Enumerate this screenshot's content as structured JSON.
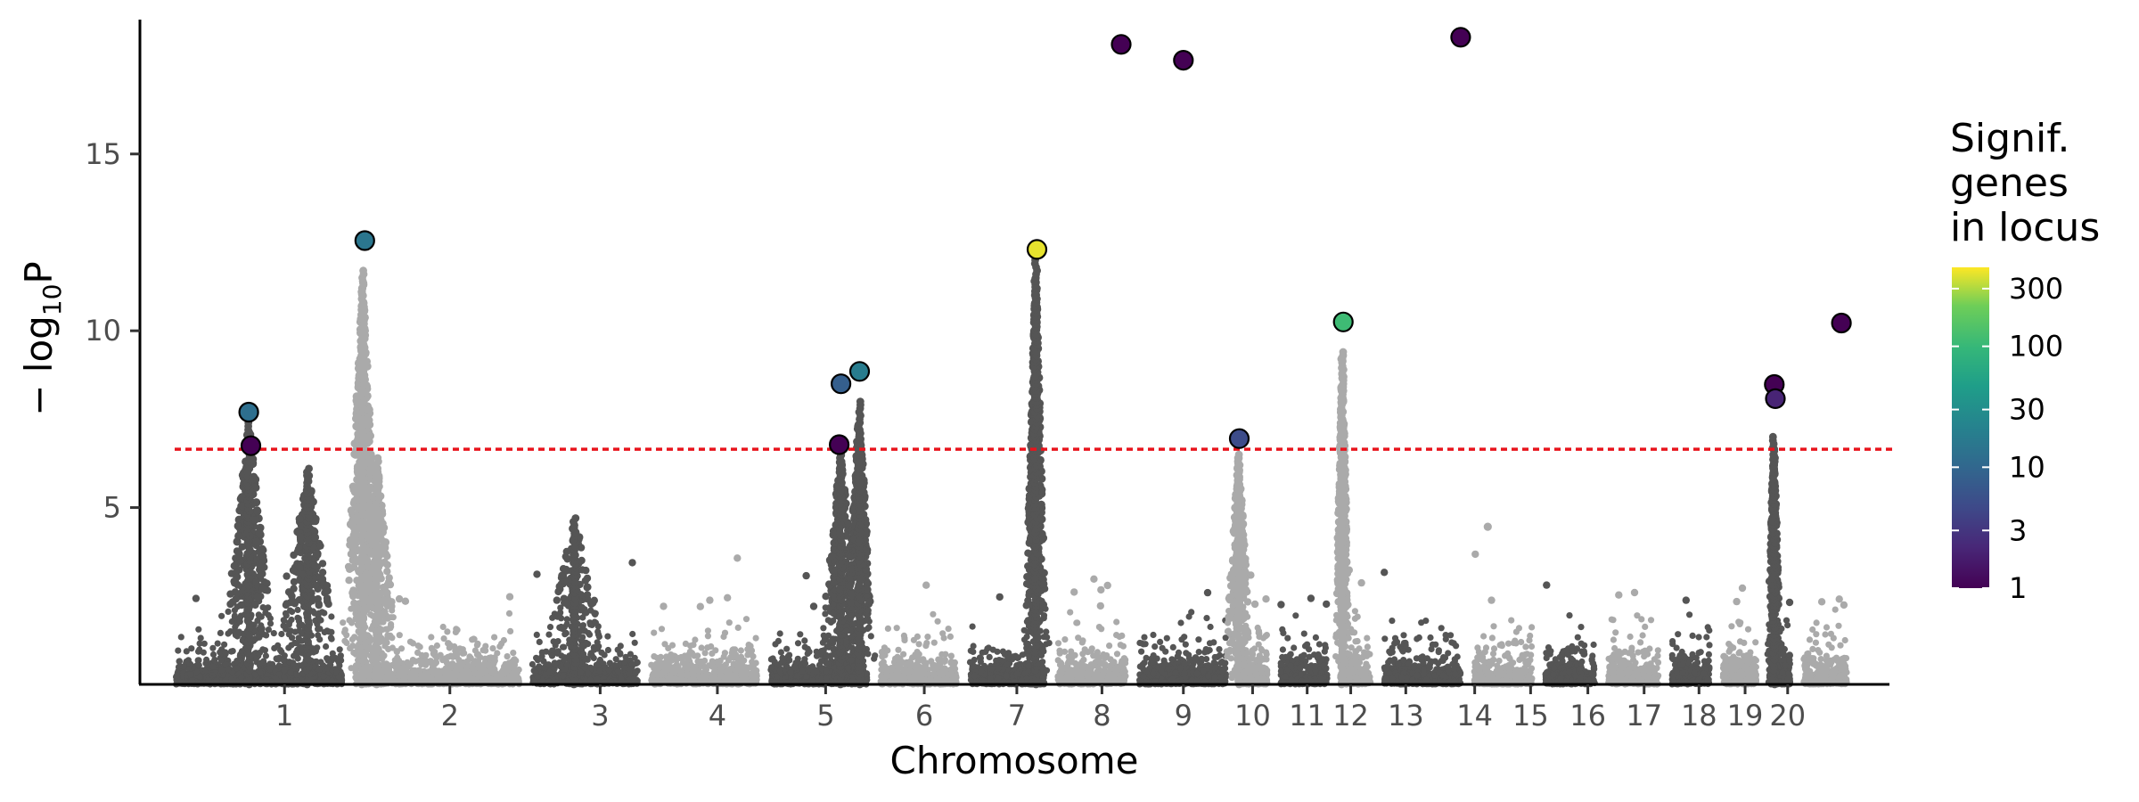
{
  "chart_data": {
    "type": "scatter",
    "subtype": "manhattan",
    "title": "",
    "xlabel": "Chromosome",
    "ylabel_prefix": "− log",
    "ylabel_sub": "10",
    "ylabel_suffix": "P",
    "ylim": [
      0,
      18.8
    ],
    "y_ticks": [
      5,
      10,
      15
    ],
    "significance_threshold": 6.65,
    "threshold_color": "#e8141c",
    "colors": {
      "dark": "#555555",
      "light": "#aaaaaa"
    },
    "chromosomes": [
      {
        "label": "1",
        "start": 0.0,
        "end": 0.1062,
        "base_peak": 5.2,
        "peaks": [
          [
            0.047,
            7.5,
            0.015
          ],
          [
            0.082,
            6.1,
            0.018
          ]
        ]
      },
      {
        "label": "2",
        "start": 0.1062,
        "end": 0.2111,
        "base_peak": 4.1,
        "peaks": [
          [
            0.1145,
            11.7,
            0.01
          ],
          [
            0.123,
            6.4,
            0.012
          ]
        ]
      },
      {
        "label": "3",
        "start": 0.2111,
        "end": 0.2813,
        "base_peak": 4.6,
        "peaks": [
          [
            0.24,
            4.7,
            0.02
          ]
        ]
      },
      {
        "label": "4",
        "start": 0.2813,
        "end": 0.3521,
        "base_peak": 3.7,
        "peaks": []
      },
      {
        "label": "5",
        "start": 0.3521,
        "end": 0.4171,
        "base_peak": 4.8,
        "peaks": [
          [
            0.3975,
            6.6,
            0.012
          ],
          [
            0.4085,
            8.0,
            0.008
          ]
        ]
      },
      {
        "label": "6",
        "start": 0.4171,
        "end": 0.4701,
        "base_peak": 3.3,
        "peaks": []
      },
      {
        "label": "7",
        "start": 0.4701,
        "end": 0.522,
        "base_peak": 4.2,
        "peaks": [
          [
            0.513,
            12.0,
            0.006
          ]
        ]
      },
      {
        "label": "8",
        "start": 0.522,
        "end": 0.5703,
        "base_peak": 4.8,
        "peaks": []
      },
      {
        "label": "9",
        "start": 0.5703,
        "end": 0.6296,
        "base_peak": 4.2,
        "peaks": []
      },
      {
        "label": "10",
        "start": 0.6296,
        "end": 0.6541,
        "base_peak": 6.3,
        "peaks": [
          [
            0.633,
            6.5,
            0.008
          ]
        ]
      },
      {
        "label": "11",
        "start": 0.6541,
        "end": 0.6895,
        "base_peak": 3.8,
        "peaks": []
      },
      {
        "label": "12",
        "start": 0.6895,
        "end": 0.7153,
        "base_peak": 3.5,
        "peaks": [
          [
            0.6945,
            9.4,
            0.004
          ]
        ]
      },
      {
        "label": "13",
        "start": 0.7153,
        "end": 0.7687,
        "base_peak": 5.2,
        "peaks": []
      },
      {
        "label": "14",
        "start": 0.7687,
        "end": 0.8108,
        "base_peak": 4.5,
        "peaks": []
      },
      {
        "label": "15",
        "start": 0.8108,
        "end": 0.848,
        "base_peak": 3.4,
        "peaks": []
      },
      {
        "label": "16",
        "start": 0.848,
        "end": 0.8857,
        "base_peak": 4.4,
        "peaks": []
      },
      {
        "label": "17",
        "start": 0.8857,
        "end": 0.9159,
        "base_peak": 4.8,
        "peaks": []
      },
      {
        "label": "18",
        "start": 0.9159,
        "end": 0.9436,
        "base_peak": 4.2,
        "peaks": []
      },
      {
        "label": "19",
        "start": 0.9436,
        "end": 0.9637,
        "base_peak": 7.0,
        "peaks": [
          [
            0.95,
            7.0,
            0.004
          ]
        ]
      },
      {
        "label": "20",
        "start": 0.9637,
        "end": 0.9972,
        "base_peak": 5.4,
        "peaks": []
      }
    ],
    "tick_labels": [
      {
        "label": "1",
        "x": 0.0682
      },
      {
        "label": "2",
        "x": 0.1661
      },
      {
        "label": "3",
        "x": 0.2551
      },
      {
        "label": "4",
        "x": 0.3245
      },
      {
        "label": "5",
        "x": 0.3886
      },
      {
        "label": "6",
        "x": 0.447
      },
      {
        "label": "7",
        "x": 0.5018
      },
      {
        "label": "8",
        "x": 0.5522
      },
      {
        "label": "9",
        "x": 0.6004
      },
      {
        "label": "10",
        "x": 0.6414
      },
      {
        "label": "11",
        "x": 0.6737
      },
      {
        "label": "12",
        "x": 0.6995
      },
      {
        "label": "13",
        "x": 0.7321
      },
      {
        "label": "14",
        "x": 0.7729
      },
      {
        "label": "15",
        "x": 0.806
      },
      {
        "label": "16",
        "x": 0.8399
      },
      {
        "label": "17",
        "x": 0.8732
      },
      {
        "label": "18",
        "x": 0.9057
      },
      {
        "label": "19",
        "x": 0.933
      },
      {
        "label": "20",
        "x": 0.9582
      }
    ],
    "loci": [
      {
        "x": 0.047,
        "y": 7.7,
        "genes": 12
      },
      {
        "x": 0.0483,
        "y": 6.75,
        "genes": 1
      },
      {
        "x": 0.1157,
        "y": 12.55,
        "genes": 15
      },
      {
        "x": 0.3966,
        "y": 6.78,
        "genes": 1
      },
      {
        "x": 0.3977,
        "y": 8.5,
        "genes": 8
      },
      {
        "x": 0.4087,
        "y": 8.85,
        "genes": 18
      },
      {
        "x": 0.5137,
        "y": 12.3,
        "genes": 400
      },
      {
        "x": 0.5636,
        "y": 18.1,
        "genes": 1
      },
      {
        "x": 0.6004,
        "y": 17.65,
        "genes": 1
      },
      {
        "x": 0.6335,
        "y": 6.95,
        "genes": 5
      },
      {
        "x": 0.6951,
        "y": 10.25,
        "genes": 110
      },
      {
        "x": 0.7646,
        "y": 18.3,
        "genes": 1
      },
      {
        "x": 0.9503,
        "y": 8.48,
        "genes": 1
      },
      {
        "x": 0.9509,
        "y": 8.08,
        "genes": 2
      },
      {
        "x": 0.99,
        "y": 10.22,
        "genes": 1
      }
    ],
    "legend": {
      "title_lines": [
        "Signif.",
        "genes",
        "in locus"
      ],
      "scale": "log",
      "min": 1,
      "max": 450,
      "colormap": "viridis",
      "ticks": [
        {
          "value": 1,
          "label": "1"
        },
        {
          "value": 3,
          "label": "3"
        },
        {
          "value": 10,
          "label": "10"
        },
        {
          "value": 30,
          "label": "30"
        },
        {
          "value": 100,
          "label": "100"
        },
        {
          "value": 300,
          "label": "300"
        }
      ],
      "placement": "right"
    }
  }
}
